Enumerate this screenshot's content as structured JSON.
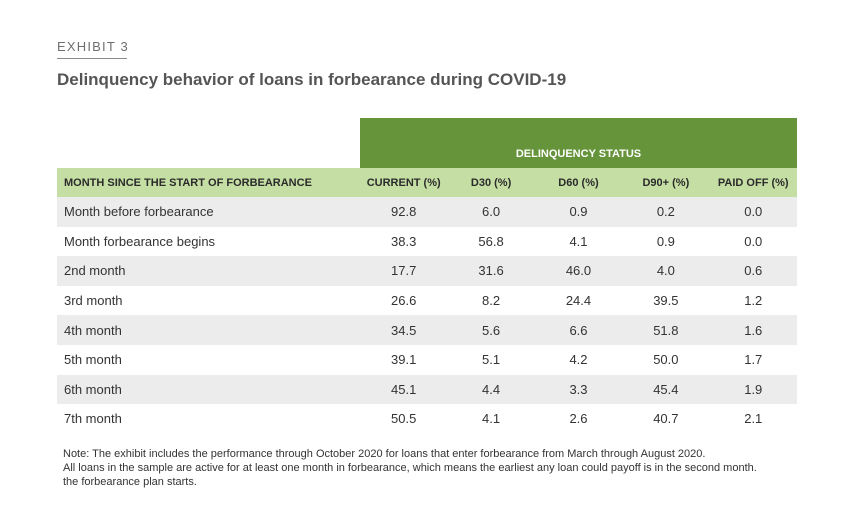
{
  "exhibit": "EXHIBIT 3",
  "title": "Delinquency behavior of loans in forbearance during COVID-19",
  "table": {
    "group_header": "DELINQUENCY STATUS",
    "first_header": "MONTH SINCE THE START OF FORBEARANCE",
    "columns": [
      "CURRENT (%)",
      "D30 (%)",
      "D60 (%)",
      "D90+ (%)",
      "PAID OFF (%)"
    ],
    "rows": [
      {
        "label": "Month before forbearance",
        "values": [
          "92.8",
          "6.0",
          "0.9",
          "0.2",
          "0.0"
        ]
      },
      {
        "label": "Month forbearance begins",
        "values": [
          "38.3",
          "56.8",
          "4.1",
          "0.9",
          "0.0"
        ]
      },
      {
        "label": "2nd month",
        "values": [
          "17.7",
          "31.6",
          "46.0",
          "4.0",
          "0.6"
        ]
      },
      {
        "label": "3rd month",
        "values": [
          "26.6",
          "8.2",
          "24.4",
          "39.5",
          "1.2"
        ]
      },
      {
        "label": "4th month",
        "values": [
          "34.5",
          "5.6",
          "6.6",
          "51.8",
          "1.6"
        ]
      },
      {
        "label": "5th month",
        "values": [
          "39.1",
          "5.1",
          "4.2",
          "50.0",
          "1.7"
        ]
      },
      {
        "label": "6th month",
        "values": [
          "45.1",
          "4.4",
          "3.3",
          "45.4",
          "1.9"
        ]
      },
      {
        "label": "7th month",
        "values": [
          "50.5",
          "4.1",
          "2.6",
          "40.7",
          "2.1"
        ]
      }
    ]
  },
  "notes": [
    "Note: The exhibit includes the performance through October 2020 for loans that enter forbearance from March through August 2020.",
    "All loans in the sample are active for at least one month in forbearance, which means the earliest any loan could payoff is in the second month.",
    "the forbearance plan starts."
  ]
}
